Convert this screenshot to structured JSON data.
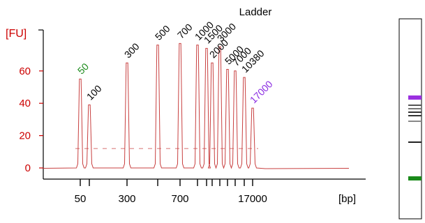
{
  "chart_data": {
    "type": "line",
    "title": "Ladder",
    "ylabel": "[FU]",
    "xlabel": "[bp]",
    "ylim": [
      -3,
      90
    ],
    "y_ticks": [
      0,
      20,
      40,
      60
    ],
    "x_tick_labels": [
      "50",
      "300",
      "700",
      "17000"
    ],
    "x_marks": [
      "50",
      "100",
      "300",
      "500",
      "700",
      "1000",
      "1500",
      "2000",
      "3000",
      "5000",
      "7000",
      "10380",
      "17000"
    ],
    "series": [
      {
        "peaks": [
          {
            "label": "50",
            "fu": 55,
            "color": "#1a8a1a"
          },
          {
            "label": "100",
            "fu": 39,
            "color": "#000000"
          },
          {
            "label": "300",
            "fu": 65,
            "color": "#000000"
          },
          {
            "label": "500",
            "fu": 76,
            "color": "#000000"
          },
          {
            "label": "700",
            "fu": 77,
            "color": "#000000"
          },
          {
            "label": "1000",
            "fu": 76,
            "color": "#000000"
          },
          {
            "label": "1500",
            "fu": 74,
            "color": "#000000"
          },
          {
            "label": "2000",
            "fu": 65,
            "color": "#000000"
          },
          {
            "label": "3000",
            "fu": 75,
            "color": "#000000"
          },
          {
            "label": "5000",
            "fu": 61,
            "color": "#000000"
          },
          {
            "label": "7000",
            "fu": 60,
            "color": "#000000"
          },
          {
            "label": "10380",
            "fu": 56,
            "color": "#000000"
          },
          {
            "label": "17000",
            "fu": 37,
            "color": "#8a2be2"
          }
        ]
      }
    ],
    "gel_lane": {
      "bands": [
        {
          "color": "#9b30e0",
          "weight": 3
        },
        {
          "color": "#555555",
          "weight": 1
        },
        {
          "color": "#777777",
          "weight": 1
        },
        {
          "color": "#333333",
          "weight": 1
        },
        {
          "color": "#333333",
          "weight": 1
        },
        {
          "color": "#888888",
          "weight": 1
        },
        {
          "color": "#222222",
          "weight": 1
        },
        {
          "color": "#1a8a1a",
          "weight": 3
        }
      ]
    },
    "colors": {
      "axis": "#cc0000",
      "trace": "#c84040",
      "frame": "#000000"
    }
  }
}
